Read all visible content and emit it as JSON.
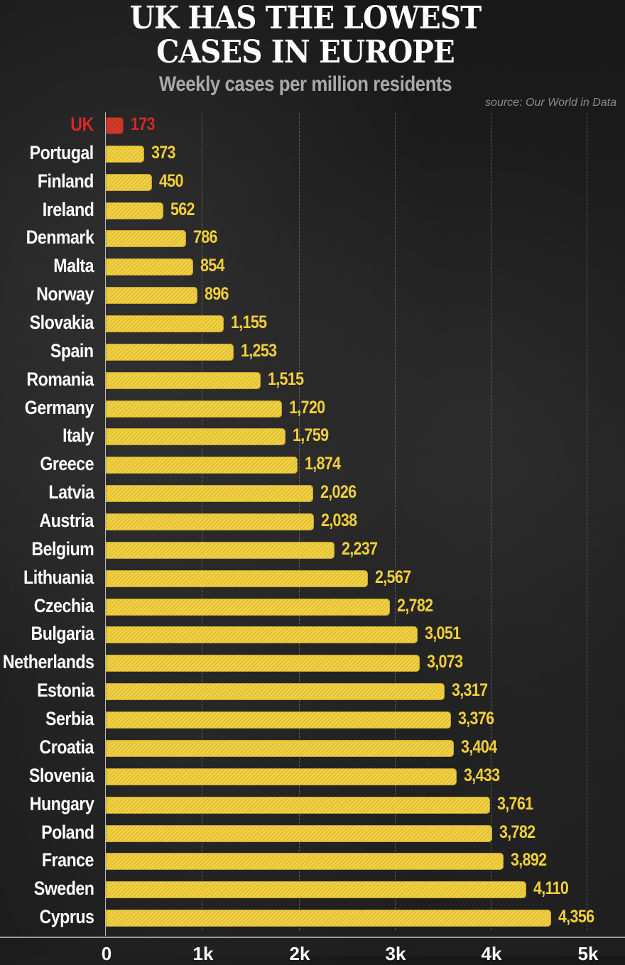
{
  "header": {
    "title_line1": "UK HAS THE LOWEST",
    "title_line2": "CASES IN EUROPE",
    "subtitle": "Weekly cases per million residents",
    "source": "source: Our World in Data"
  },
  "colors": {
    "bar": "#f2cf3a",
    "highlight": "#d42a22",
    "background": "#1c1c1c",
    "title": "#ffffff",
    "subtitle": "#a9a9a9"
  },
  "axis": {
    "ticks": [
      "0",
      "1k",
      "2k",
      "3k",
      "4k",
      "5k"
    ]
  },
  "chart_data": {
    "type": "bar",
    "orientation": "horizontal",
    "title": "UK HAS THE LOWEST CASES IN EUROPE",
    "subtitle": "Weekly cases per million residents",
    "source": "source: Our World in Data",
    "xlabel": "",
    "ylabel": "",
    "xlim": [
      0,
      5000
    ],
    "xticks": [
      "0",
      "1k",
      "2k",
      "3k",
      "4k",
      "5k"
    ],
    "grid": true,
    "highlight": "UK",
    "categories": [
      "UK",
      "Portugal",
      "Finland",
      "Ireland",
      "Denmark",
      "Malta",
      "Norway",
      "Slovakia",
      "Spain",
      "Romania",
      "Germany",
      "Italy",
      "Greece",
      "Latvia",
      "Austria",
      "Belgium",
      "Lithuania",
      "Czechia",
      "Bulgaria",
      "Netherlands",
      "Estonia",
      "Serbia",
      "Croatia",
      "Slovenia",
      "Hungary",
      "Poland",
      "France",
      "Sweden",
      "Cyprus"
    ],
    "values": [
      173,
      373,
      450,
      562,
      786,
      854,
      896,
      1155,
      1253,
      1515,
      1720,
      1759,
      1874,
      2026,
      2038,
      2237,
      2567,
      2782,
      3051,
      3073,
      3317,
      3376,
      3404,
      3433,
      3761,
      3782,
      3892,
      4110,
      4356
    ],
    "value_labels": [
      "173",
      "373",
      "450",
      "562",
      "786",
      "854",
      "896",
      "1,155",
      "1,253",
      "1,515",
      "1,720",
      "1,759",
      "1,874",
      "2,026",
      "2,038",
      "2,237",
      "2,567",
      "2,782",
      "3,051",
      "3,073",
      "3,317",
      "3,376",
      "3,404",
      "3,433",
      "3,761",
      "3,782",
      "3,892",
      "4,110",
      "4,356"
    ]
  }
}
